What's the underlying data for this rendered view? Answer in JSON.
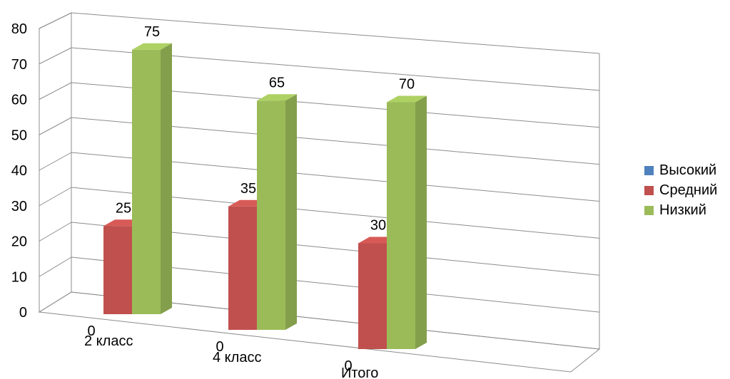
{
  "chart_data": {
    "type": "bar",
    "categories": [
      "2 класс",
      "4 класс",
      "Итого"
    ],
    "series": [
      {
        "name": "Высокий",
        "values": [
          0,
          0,
          0
        ],
        "color": "#4f81bd"
      },
      {
        "name": "Средний",
        "values": [
          25,
          35,
          30
        ],
        "color": "#c0504d"
      },
      {
        "name": "Низкий",
        "values": [
          75,
          65,
          70
        ],
        "color": "#9bbb59"
      }
    ],
    "yticks": [
      "0",
      "10",
      "20",
      "30",
      "40",
      "50",
      "60",
      "70",
      "80"
    ],
    "ylim": [
      0,
      80
    ],
    "grid": true,
    "legend": "right",
    "projection": "3d"
  }
}
